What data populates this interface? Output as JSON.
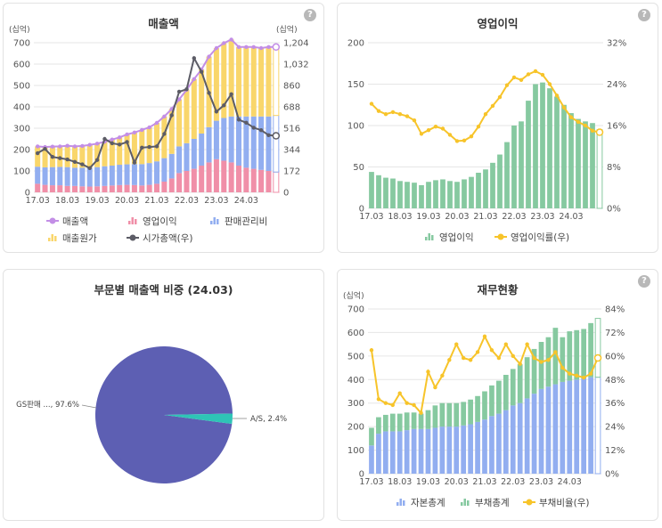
{
  "colors": {
    "bar_red": "#f08fa8",
    "bar_blue": "#92aef0",
    "bar_yellow": "#f9d66b",
    "line_purple": "#c38ee6",
    "line_gray": "#5c5c66",
    "bar_green": "#86c9a0",
    "line_orange": "#f7c42a",
    "pie_main": "#5d5fb3",
    "pie_small": "#2ec4b6"
  },
  "help_icon": "?",
  "panels": {
    "revenue": {
      "title": "매출액",
      "unit_left": "(십억)",
      "unit_right": "(십억)",
      "legend": [
        {
          "label": "매출액",
          "icon": "line-marker-icon",
          "color": "#c38ee6"
        },
        {
          "label": "영업이익",
          "icon": "bar-icon",
          "color": "#f08fa8"
        },
        {
          "label": "판매관리비",
          "icon": "bar-icon",
          "color": "#92aef0"
        },
        {
          "label": "매출원가",
          "icon": "bar-icon",
          "color": "#f9d66b"
        },
        {
          "label": "시가총액(우)",
          "icon": "line-marker-icon",
          "color": "#5c5c66"
        }
      ]
    },
    "op_profit": {
      "title": "영업이익",
      "legend": [
        {
          "label": "영업이익",
          "icon": "bar-icon",
          "color": "#86c9a0"
        },
        {
          "label": "영업이익률(우)",
          "icon": "line-marker-icon",
          "color": "#f7c42a"
        }
      ]
    },
    "segment": {
      "title": "부문별 매출액 비중 (24.03)",
      "labels": [
        "GS판매 ..., 97.6%",
        "A/S, 2.4%"
      ]
    },
    "finance": {
      "title": "재무현황",
      "unit_left": "(십억)",
      "legend": [
        {
          "label": "자본총계",
          "icon": "bar-icon",
          "color": "#92aef0"
        },
        {
          "label": "부채총계",
          "icon": "bar-icon",
          "color": "#86c9a0"
        },
        {
          "label": "부채비율(우)",
          "icon": "line-marker-icon",
          "color": "#f7c42a"
        }
      ]
    }
  },
  "chart_data": [
    {
      "type": "bar",
      "title": "매출액",
      "x_ticks": [
        "17.03",
        "18.03",
        "19.03",
        "20.03",
        "21.03",
        "22.03",
        "23.03",
        "24.03"
      ],
      "ylim": [
        0,
        700
      ],
      "y_ticks": [
        0,
        100,
        200,
        300,
        400,
        500,
        600,
        700
      ],
      "y2lim": [
        0,
        1204
      ],
      "y2_ticks": [
        "0",
        "172",
        "344",
        "516",
        "688",
        "860",
        "1,032",
        "1,204"
      ],
      "grid": true,
      "stacked": true,
      "series": [
        {
          "name": "영업이익",
          "kind": "bar",
          "values": [
            40,
            35,
            33,
            33,
            30,
            30,
            28,
            27,
            28,
            30,
            32,
            34,
            35,
            34,
            32,
            35,
            40,
            50,
            65,
            90,
            100,
            110,
            125,
            140,
            155,
            148,
            140,
            125,
            115,
            110,
            105,
            100,
            95
          ]
        },
        {
          "name": "판매관리비",
          "kind": "bar",
          "values": [
            80,
            82,
            85,
            86,
            88,
            85,
            87,
            88,
            90,
            92,
            93,
            95,
            96,
            98,
            100,
            102,
            105,
            110,
            115,
            125,
            130,
            140,
            150,
            165,
            180,
            200,
            215,
            230,
            240,
            245,
            250,
            255,
            265
          ]
        },
        {
          "name": "매출원가",
          "kind": "bar",
          "values": [
            95,
            95,
            96,
            96,
            100,
            100,
            102,
            107,
            110,
            115,
            122,
            128,
            140,
            148,
            160,
            167,
            180,
            195,
            210,
            220,
            250,
            280,
            300,
            330,
            340,
            350,
            360,
            325,
            325,
            325,
            320,
            325,
            320
          ]
        },
        {
          "name": "매출액",
          "kind": "line",
          "values": [
            215,
            212,
            214,
            215,
            218,
            215,
            217,
            222,
            228,
            237,
            247,
            257,
            271,
            280,
            292,
            304,
            325,
            355,
            390,
            435,
            480,
            530,
            575,
            635,
            675,
            698,
            715,
            680,
            680,
            680,
            675,
            680,
            680
          ]
        },
        {
          "name": "시가총액(우)",
          "kind": "line",
          "axis": "right",
          "values": [
            315,
            350,
            285,
            275,
            265,
            245,
            225,
            195,
            260,
            430,
            395,
            385,
            405,
            240,
            360,
            365,
            370,
            470,
            620,
            810,
            830,
            1080,
            970,
            800,
            650,
            700,
            790,
            585,
            560,
            520,
            500,
            460,
            455
          ]
        }
      ]
    },
    {
      "type": "bar",
      "title": "영업이익",
      "x_ticks": [
        "17.03",
        "18.03",
        "19.03",
        "20.03",
        "21.03",
        "22.03",
        "23.03",
        "24.03"
      ],
      "ylim": [
        0,
        200
      ],
      "y_ticks": [
        0,
        50,
        100,
        150,
        200
      ],
      "y2lim": [
        0,
        32
      ],
      "y2_ticks": [
        "0%",
        "8%",
        "16%",
        "24%",
        "32%"
      ],
      "grid": true,
      "series": [
        {
          "name": "영업이익",
          "kind": "bar",
          "values": [
            44,
            40,
            37,
            36,
            33,
            32,
            31,
            28,
            32,
            34,
            35,
            33,
            32,
            35,
            38,
            43,
            47,
            55,
            65,
            80,
            100,
            105,
            130,
            150,
            152,
            145,
            135,
            125,
            115,
            108,
            105,
            103,
            95
          ]
        },
        {
          "name": "영업이익률(우)",
          "kind": "line",
          "axis": "right",
          "unit": "%",
          "values": [
            20.2,
            18.8,
            18.2,
            18.6,
            18.2,
            17.8,
            17.0,
            14.4,
            15.1,
            15.8,
            15.4,
            14.2,
            13.0,
            13.1,
            13.9,
            15.8,
            18.2,
            19.8,
            21.5,
            23.8,
            25.3,
            24.8,
            25.9,
            26.5,
            25.8,
            24.0,
            21.8,
            19.5,
            17.6,
            16.7,
            16.0,
            15.0,
            14.7
          ]
        }
      ]
    },
    {
      "type": "pie",
      "title": "부문별 매출액 비중 (24.03)",
      "slices": [
        {
          "label": "GS판매 ...",
          "value": 97.6
        },
        {
          "label": "A/S",
          "value": 2.4
        }
      ]
    },
    {
      "type": "bar",
      "title": "재무현황",
      "x_ticks": [
        "17.03",
        "18.03",
        "19.03",
        "20.03",
        "21.03",
        "22.03",
        "23.03",
        "24.03"
      ],
      "ylim": [
        0,
        700
      ],
      "y_ticks": [
        0,
        100,
        200,
        300,
        400,
        500,
        600,
        700
      ],
      "y2lim": [
        0,
        84
      ],
      "y2_ticks": [
        "0%",
        "12%",
        "24%",
        "36%",
        "48%",
        "60%",
        "72%",
        "84%"
      ],
      "grid": true,
      "stacked": true,
      "series": [
        {
          "name": "자본총계",
          "kind": "bar",
          "values": [
            120,
            170,
            180,
            180,
            180,
            185,
            190,
            190,
            190,
            195,
            200,
            200,
            200,
            205,
            210,
            220,
            230,
            245,
            255,
            270,
            290,
            300,
            320,
            340,
            360,
            370,
            380,
            390,
            395,
            400,
            405,
            410,
            410
          ]
        },
        {
          "name": "부채총계",
          "kind": "bar",
          "values": [
            75,
            70,
            70,
            75,
            75,
            75,
            70,
            65,
            80,
            95,
            100,
            100,
            100,
            100,
            105,
            110,
            120,
            130,
            140,
            150,
            155,
            165,
            175,
            190,
            200,
            210,
            240,
            190,
            210,
            210,
            210,
            230,
            250
          ]
        },
        {
          "name": "부채비율(우)",
          "kind": "line",
          "axis": "right",
          "unit": "%",
          "values": [
            63,
            38,
            36,
            35,
            41,
            36,
            35,
            31,
            52,
            44,
            50,
            58,
            66,
            59,
            58,
            62,
            70,
            63,
            59,
            66,
            60,
            56,
            66,
            59,
            57,
            58,
            62,
            54,
            51,
            50,
            49,
            51,
            59
          ]
        }
      ]
    }
  ]
}
